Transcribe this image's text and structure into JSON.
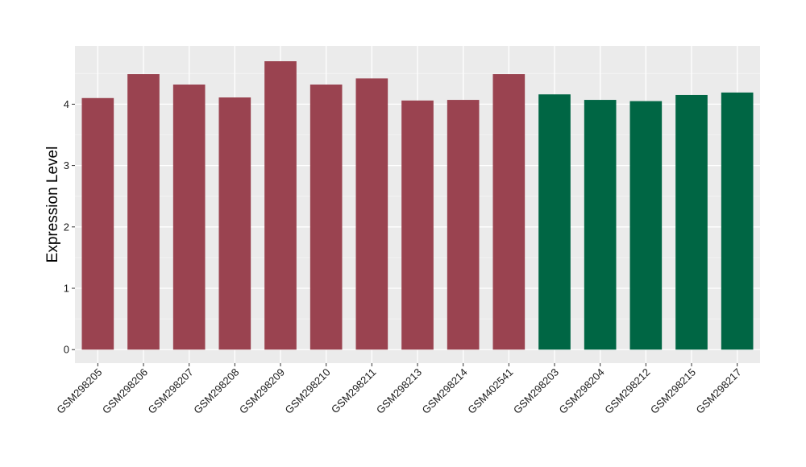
{
  "chart_data": {
    "type": "bar",
    "title": "",
    "xlabel": "",
    "ylabel": "Expression Level",
    "ylim": [
      -0.22,
      4.95
    ],
    "yticks": [
      0,
      1,
      2,
      3,
      4
    ],
    "grid": true,
    "background_color": "#ebebeb",
    "categories": [
      "GSM298205",
      "GSM298206",
      "GSM298207",
      "GSM298208",
      "GSM298209",
      "GSM298210",
      "GSM298211",
      "GSM298213",
      "GSM298214",
      "GSM402541",
      "GSM298203",
      "GSM298204",
      "GSM298212",
      "GSM298215",
      "GSM298217"
    ],
    "values": [
      4.1,
      4.49,
      4.32,
      4.11,
      4.7,
      4.32,
      4.42,
      4.06,
      4.07,
      4.49,
      4.16,
      4.07,
      4.05,
      4.15,
      4.19
    ],
    "colors": [
      "#9a4350",
      "#9a4350",
      "#9a4350",
      "#9a4350",
      "#9a4350",
      "#9a4350",
      "#9a4350",
      "#9a4350",
      "#9a4350",
      "#9a4350",
      "#006644",
      "#006644",
      "#006644",
      "#006644",
      "#006644"
    ]
  }
}
